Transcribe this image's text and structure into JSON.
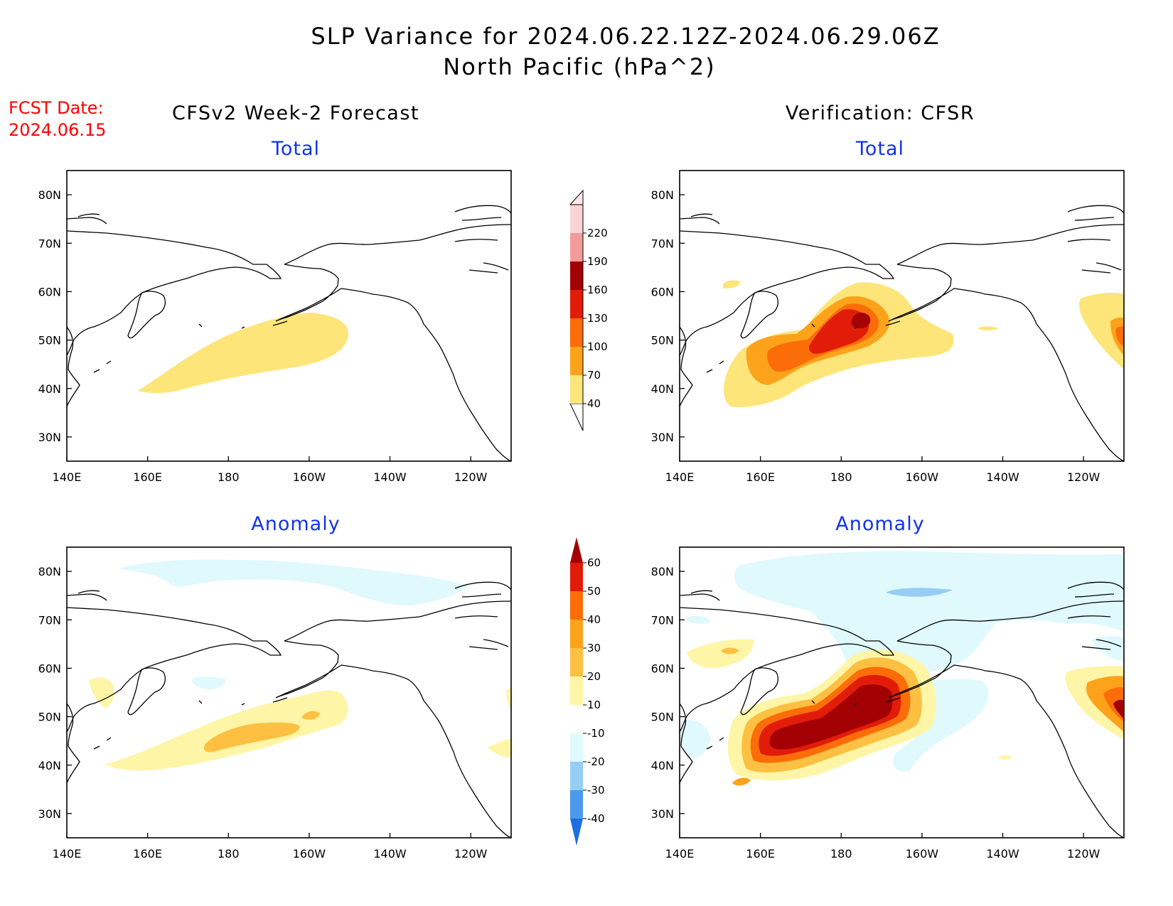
{
  "header": {
    "title_line1": "SLP Variance for 2024.06.22.12Z-2024.06.29.06Z",
    "title_line2": "North Pacific (hPa^2)",
    "fcst_label": "FCST Date:",
    "fcst_date": "2024.06.15"
  },
  "columns": {
    "left": "CFSv2 Week-2 Forecast",
    "right": "Verification: CFSR"
  },
  "rows": {
    "top": "Total",
    "bottom": "Anomaly"
  },
  "axes": {
    "x_ticks": [
      "140E",
      "160E",
      "180",
      "160W",
      "140W",
      "120W"
    ],
    "y_ticks": [
      "80N",
      "70N",
      "60N",
      "50N",
      "40N",
      "30N"
    ],
    "lon_range": [
      140,
      250
    ],
    "lat_range": [
      25,
      85
    ]
  },
  "colorbars": {
    "total": {
      "levels": [
        "40",
        "70",
        "100",
        "130",
        "160",
        "190",
        "220"
      ],
      "colors": [
        "#fde57a",
        "#fca31b",
        "#fb6d08",
        "#e11c09",
        "#a30104",
        "#f29b9b",
        "#fbd3d3"
      ]
    },
    "anomaly": {
      "levels": [
        "60",
        "50",
        "40",
        "30",
        "20",
        "10",
        "-10",
        "-20",
        "-30",
        "-40"
      ],
      "colors": [
        "#a30104",
        "#e11c09",
        "#fb6d08",
        "#fca31b",
        "#fdc042",
        "#fef5a6",
        "#ffffff",
        "#dff9fd",
        "#95cdf5",
        "#4a99ec",
        "#1d6ee0"
      ]
    }
  },
  "chart_data": [
    {
      "type": "map",
      "panel": "forecast-total",
      "fields": [
        {
          "level": "40-70",
          "color": "#fde57a",
          "region": "band from 40N 157E to 56N 172W, eastern tip ~50N 150W"
        }
      ]
    },
    {
      "type": "map",
      "panel": "verification-total",
      "fields": [
        {
          "level": "40-70",
          "color": "#fde57a",
          "region": "broad area 37N-62N, 152E-152W plus eastern edge near 50N 120W"
        },
        {
          "level": "70-100",
          "color": "#fca31b",
          "region": "core 43N-60N, 158E-168W"
        },
        {
          "level": "100-130",
          "color": "#fb6d08",
          "region": "core 45N-57N, 164E-172W"
        },
        {
          "level": "130-160",
          "color": "#e11c09",
          "region": "core 48N-57N, 175E-176W"
        },
        {
          "level": "160-190",
          "color": "#a30104",
          "region": "max near 54N 177W"
        }
      ]
    },
    {
      "type": "map",
      "panel": "forecast-anomaly",
      "fields": [
        {
          "level": "10-20",
          "color": "#fef5a6",
          "region": "band 40N 150E to 55N 152W"
        },
        {
          "level": "20-30",
          "color": "#fdc042",
          "region": "core 43N-48N, 175E-168W"
        },
        {
          "level": "-10--20",
          "color": "#dff9fd",
          "region": "arctic band 74N-82N, 165E-130W"
        }
      ]
    },
    {
      "type": "map",
      "panel": "verification-anomaly",
      "fields": [
        {
          "level": "10-20",
          "color": "#fef5a6",
          "region": "wide area 37N-62N, 152E-150W"
        },
        {
          "level": "50-60+",
          "color": "#a30104",
          "region": "core 43N-58N, 168E-170W"
        },
        {
          "level": "-10--20",
          "color": "#dff9fd",
          "region": "arctic 65N-85N and south of 45N near 150W"
        },
        {
          "level": "-20--30",
          "color": "#95cdf5",
          "region": "small patch near 75N 165W"
        }
      ]
    }
  ]
}
